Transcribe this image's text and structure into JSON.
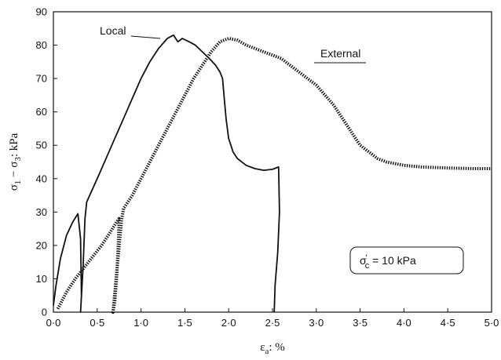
{
  "chart_data": {
    "type": "line",
    "xlabel_main": "ε",
    "xlabel_sub": "a",
    "xlabel_rest": ": %",
    "ylabel_p1": "σ",
    "ylabel_s1": "1",
    "ylabel_p2": " − σ",
    "ylabel_s2": "3",
    "ylabel_p3": ": kPa",
    "xlim": [
      0,
      5.0
    ],
    "ylim": [
      0,
      90
    ],
    "x_ticks": [
      "0·0",
      "0·5",
      "1·0",
      "1·5",
      "2·0",
      "2·5",
      "3·0",
      "3·5",
      "4·0",
      "4·5",
      "5·0"
    ],
    "y_ticks": [
      "0",
      "10",
      "20",
      "30",
      "40",
      "50",
      "60",
      "70",
      "80",
      "90"
    ],
    "grid": false,
    "annotation": {
      "pre": "σ",
      "prime": "′",
      "sub": "c",
      "post": " = 10 kPa"
    },
    "series": [
      {
        "name": "Local",
        "color": "#111111",
        "points": [
          [
            0.0,
            2
          ],
          [
            0.03,
            8
          ],
          [
            0.08,
            16
          ],
          [
            0.15,
            23
          ],
          [
            0.22,
            27
          ],
          [
            0.28,
            29.5
          ],
          [
            0.31,
            22
          ],
          [
            0.32,
            5
          ],
          [
            0.31,
            0
          ],
          [
            0.34,
            14
          ],
          [
            0.36,
            28
          ],
          [
            0.38,
            33
          ],
          [
            0.5,
            40
          ],
          [
            0.6,
            46
          ],
          [
            0.7,
            52
          ],
          [
            0.8,
            58
          ],
          [
            0.9,
            64
          ],
          [
            1.0,
            70
          ],
          [
            1.1,
            75
          ],
          [
            1.2,
            79
          ],
          [
            1.3,
            82
          ],
          [
            1.37,
            83
          ],
          [
            1.42,
            81
          ],
          [
            1.47,
            82
          ],
          [
            1.55,
            81
          ],
          [
            1.62,
            80
          ],
          [
            1.7,
            78
          ],
          [
            1.78,
            76
          ],
          [
            1.85,
            74
          ],
          [
            1.9,
            72
          ],
          [
            1.93,
            70
          ],
          [
            1.95,
            64
          ],
          [
            1.97,
            58
          ],
          [
            2.0,
            52
          ],
          [
            2.05,
            48
          ],
          [
            2.1,
            46
          ],
          [
            2.2,
            44
          ],
          [
            2.3,
            43
          ],
          [
            2.4,
            42.5
          ],
          [
            2.5,
            42.8
          ],
          [
            2.57,
            43.5
          ],
          [
            2.58,
            30
          ],
          [
            2.56,
            18
          ],
          [
            2.53,
            8
          ],
          [
            2.52,
            0
          ]
        ]
      },
      {
        "name": "External",
        "color": "#111111",
        "points": [
          [
            0.05,
            1
          ],
          [
            0.15,
            6
          ],
          [
            0.25,
            10
          ],
          [
            0.4,
            15
          ],
          [
            0.55,
            20
          ],
          [
            0.65,
            24
          ],
          [
            0.72,
            27
          ],
          [
            0.75,
            28
          ],
          [
            0.74,
            20
          ],
          [
            0.72,
            10
          ],
          [
            0.7,
            3
          ],
          [
            0.68,
            0
          ],
          [
            0.78,
            28
          ],
          [
            0.8,
            31
          ],
          [
            0.9,
            35
          ],
          [
            1.0,
            40
          ],
          [
            1.1,
            45
          ],
          [
            1.2,
            50
          ],
          [
            1.3,
            55
          ],
          [
            1.4,
            60
          ],
          [
            1.5,
            65
          ],
          [
            1.6,
            70
          ],
          [
            1.7,
            74
          ],
          [
            1.8,
            78
          ],
          [
            1.9,
            81
          ],
          [
            2.0,
            82
          ],
          [
            2.1,
            81.5
          ],
          [
            2.2,
            80
          ],
          [
            2.3,
            79
          ],
          [
            2.4,
            78
          ],
          [
            2.5,
            77
          ],
          [
            2.6,
            76
          ],
          [
            2.7,
            74
          ],
          [
            2.8,
            72
          ],
          [
            2.9,
            70
          ],
          [
            3.0,
            68
          ],
          [
            3.1,
            65
          ],
          [
            3.2,
            62
          ],
          [
            3.3,
            58
          ],
          [
            3.4,
            54
          ],
          [
            3.5,
            50
          ],
          [
            3.6,
            48
          ],
          [
            3.7,
            46
          ],
          [
            3.8,
            45
          ],
          [
            3.9,
            44.5
          ],
          [
            4.0,
            44
          ],
          [
            4.2,
            43.5
          ],
          [
            4.5,
            43.2
          ],
          [
            4.8,
            43
          ],
          [
            5.0,
            43
          ]
        ]
      }
    ],
    "labels": [
      {
        "text": "Local",
        "series": "Local"
      },
      {
        "text": "External",
        "series": "External"
      }
    ]
  }
}
